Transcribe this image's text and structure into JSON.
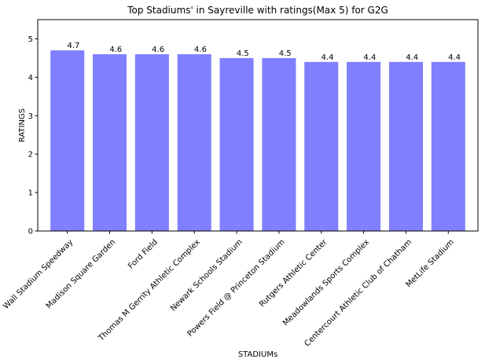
{
  "chart_data": {
    "type": "bar",
    "title": "Top Stadiums' in Sayreville with ratings(Max 5) for G2G",
    "xlabel": "STADIUMs",
    "ylabel": "RATINGS",
    "categories": [
      "Wall Stadium Speedway",
      "Madison Square Garden",
      "Ford Field",
      "Thomas M Gerrity Athletic Complex",
      "Newark Schools Stadium",
      "Powers Field @ Princeton Stadium",
      "Rutgers Athletic Center",
      "Meadowlands Sports Complex",
      "Centercourt Athletic Club of Chatham",
      "MetLife Stadium"
    ],
    "values": [
      4.7,
      4.6,
      4.6,
      4.6,
      4.5,
      4.5,
      4.4,
      4.4,
      4.4,
      4.4
    ],
    "data_labels": [
      "4.7",
      "4.6",
      "4.6",
      "4.6",
      "4.5",
      "4.5",
      "4.4",
      "4.4",
      "4.4",
      "4.4"
    ],
    "ylim": [
      0,
      5.5
    ],
    "yticks": [
      0,
      1,
      2,
      3,
      4,
      5
    ],
    "ytick_labels": [
      "0",
      "1",
      "2",
      "3",
      "4",
      "5"
    ],
    "grid": false,
    "legend": "none",
    "colors": {
      "bar": "#8080ff",
      "axis": "#000000"
    }
  }
}
